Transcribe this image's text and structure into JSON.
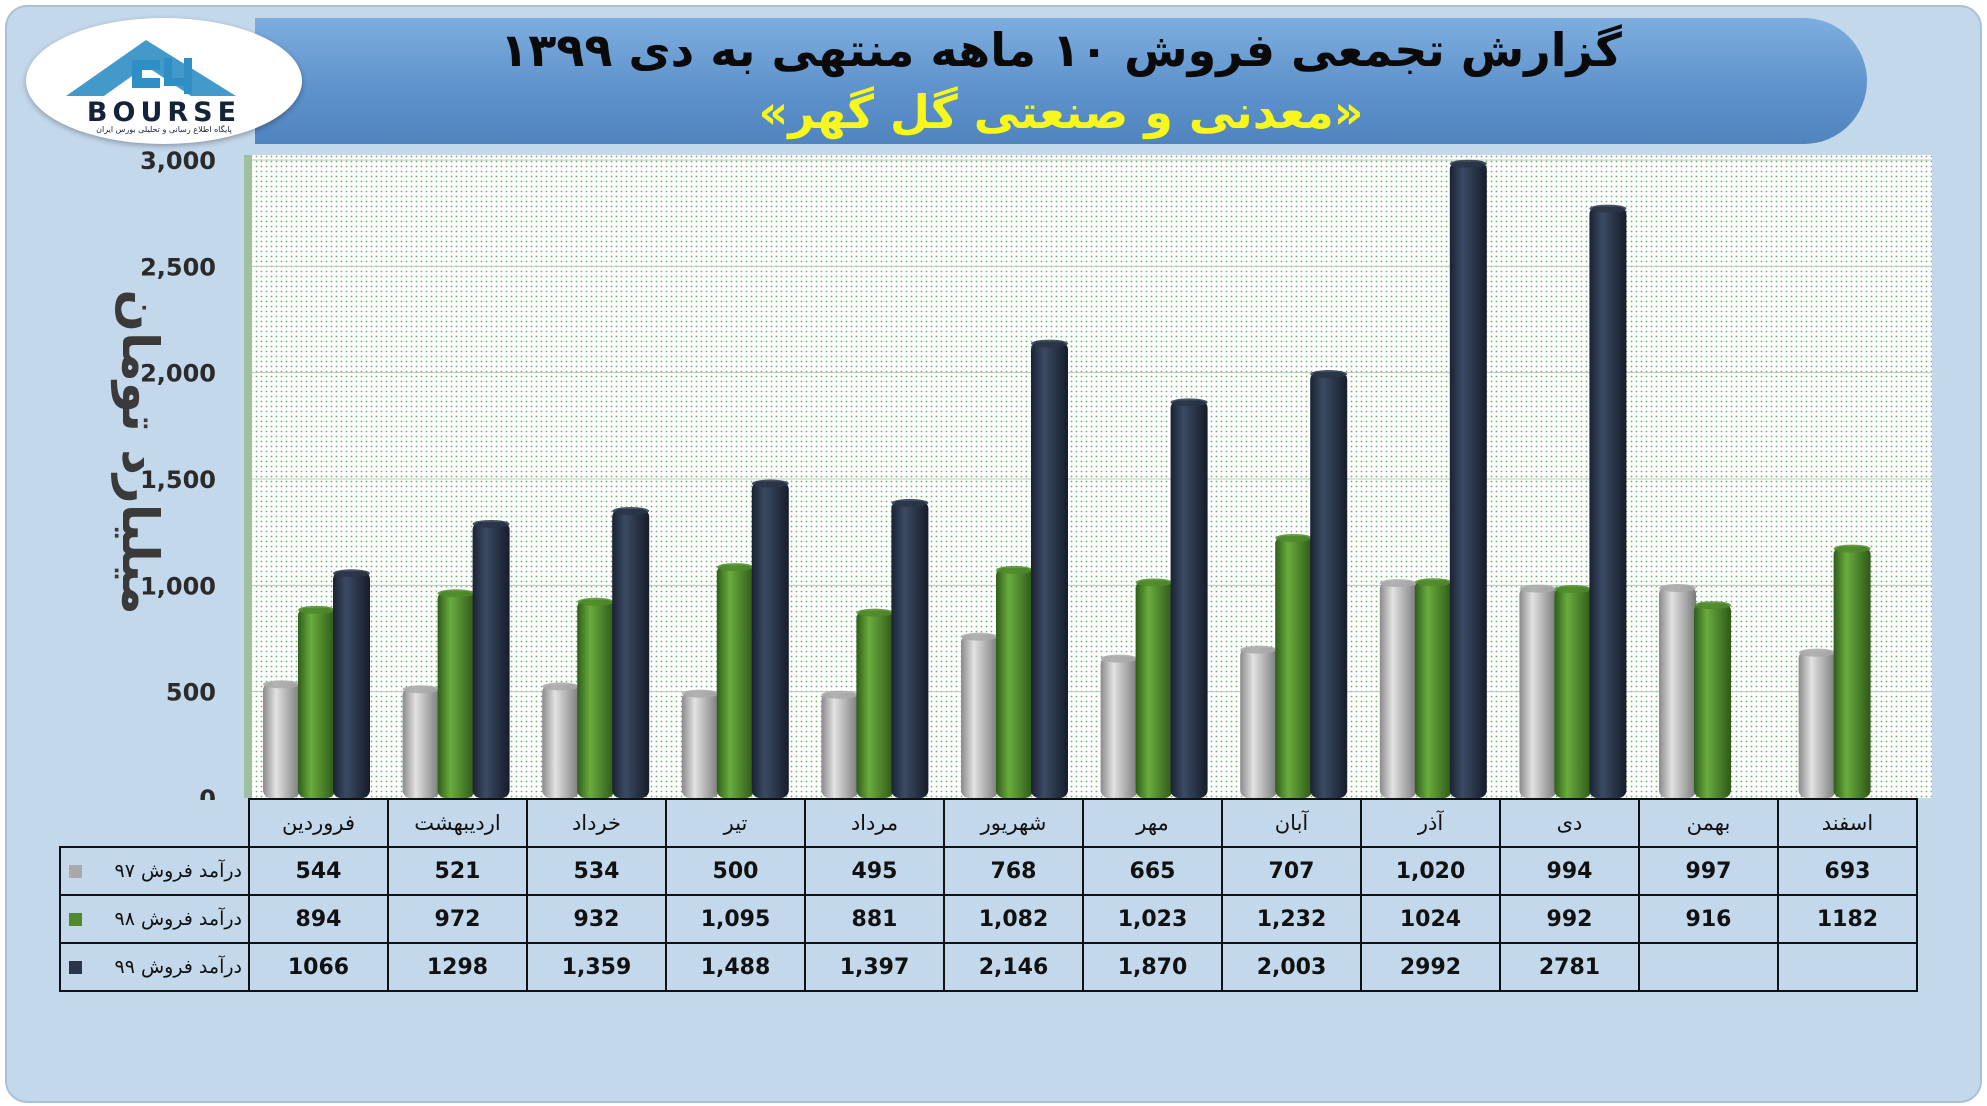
{
  "title": "گزارش تجمعی فروش ۱۰ ماهه منتهی به دی ۱۳۹۹",
  "subtitle": "«معدنی و صنعتی گل گهر»",
  "logo": {
    "text": "BOURSE",
    "sub": "پایگاه اطلاع رسانی و تحلیلی بورس ایران"
  },
  "chart_data": {
    "type": "bar",
    "ylabel": "میلیارد تومان",
    "ylim": [
      0,
      3000
    ],
    "yticks": [
      "3,000",
      "2,500",
      "2,000",
      "1,500",
      "1,000",
      "500",
      "0"
    ],
    "grid": true,
    "legend": "table-below",
    "categories": [
      "فروردین",
      "اردیبهشت",
      "خرداد",
      "تیر",
      "مرداد",
      "شهریور",
      "مهر",
      "آبان",
      "آذر",
      "دی",
      "بهمن",
      "اسفند"
    ],
    "series": [
      {
        "name": "درآمد فروش ۹۷",
        "color": "#a9a9a9",
        "values": [
          544,
          521,
          534,
          500,
          495,
          768,
          665,
          707,
          1020,
          994,
          997,
          693
        ],
        "labels": [
          "544",
          "521",
          "534",
          "500",
          "495",
          "768",
          "665",
          "707",
          "1,020",
          "994",
          "997",
          "693"
        ]
      },
      {
        "name": "درآمد فروش ۹۸",
        "color": "#4f8a2c",
        "values": [
          894,
          972,
          932,
          1095,
          881,
          1082,
          1023,
          1232,
          1024,
          992,
          916,
          1182
        ],
        "labels": [
          "894",
          "972",
          "932",
          "1,095",
          "881",
          "1,082",
          "1,023",
          "1,232",
          "1024",
          "992",
          "916",
          "1182"
        ]
      },
      {
        "name": "درآمد فروش ۹۹",
        "color": "#2a3548",
        "values": [
          1066,
          1298,
          1359,
          1488,
          1397,
          2146,
          1870,
          2003,
          2992,
          2781,
          null,
          null
        ],
        "labels": [
          "1066",
          "1298",
          "1,359",
          "1,488",
          "1,397",
          "2,146",
          "1,870",
          "2,003",
          "2992",
          "2781",
          "",
          ""
        ]
      }
    ]
  }
}
